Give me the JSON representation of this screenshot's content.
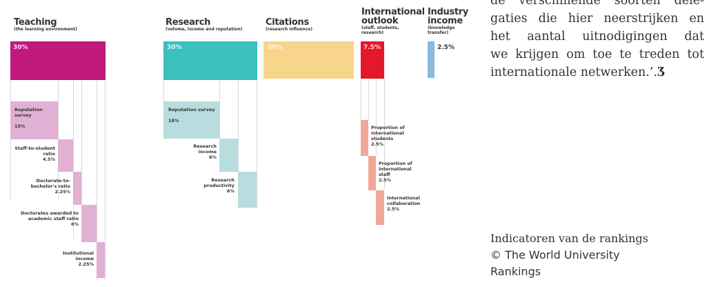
{
  "colors": {
    "teaching": "#c0187c",
    "teaching_light": "#e2afd5",
    "research": "#3dbfbe",
    "research_light": "#b9dcde",
    "citations": "#f7d58b",
    "international": "#e3182c",
    "international_light": "#f0a797",
    "industry": "#89b9de"
  },
  "figure": {
    "teaching": {
      "title": "Teaching",
      "subtitle": "(the learning environment)",
      "pct": "30%",
      "subs": [
        {
          "label": "Reputation survey",
          "pct": "15%"
        },
        {
          "label": "Staff-to-student ratio",
          "pct": "4.5%"
        },
        {
          "label": "Doctorate-to-bachelor's ratio",
          "pct": "2.25%"
        },
        {
          "label": "Doctorates awarded to academic staff ratio",
          "pct": "6%"
        },
        {
          "label": "Institutional income",
          "pct": "2.25%"
        }
      ]
    },
    "research": {
      "title": "Research",
      "subtitle": "(volume, income and reputation)",
      "pct": "30%",
      "subs": [
        {
          "label": "Reputation survey",
          "pct": "18%"
        },
        {
          "label": "Research income",
          "pct": "6%"
        },
        {
          "label": "Research productivity",
          "pct": "6%"
        }
      ]
    },
    "citations": {
      "title": "Citations",
      "subtitle": "(research influence)",
      "pct": "30%"
    },
    "international": {
      "title_1": "International",
      "title_2": "outlook",
      "subtitle_1": "(staff, students,",
      "subtitle_2": "research)",
      "pct": "7.5%",
      "subs": [
        {
          "label": "Proportion of international students",
          "pct": "2.5%"
        },
        {
          "label": "Proportion of international staff",
          "pct": "2.5%"
        },
        {
          "label": "International collaboration",
          "pct": "2.5%"
        }
      ]
    },
    "industry": {
      "title_1": "Industry",
      "title_2": "income",
      "subtitle_1": "(knowledge",
      "subtitle_2": "transfer)",
      "pct": "2.5%"
    }
  },
  "prose": {
    "line0": "de verschillende soorten dele-",
    "line1": "gaties die hier neerstrijken en",
    "line2": "het aantal uitnodigingen dat",
    "line3": "we krijgen om toe te treden tot",
    "line4": "internationale netwerken.’.",
    "end_mark": "Ʒ"
  },
  "caption": {
    "line1": "Indicatoren van de rankings",
    "line2": "© The World University",
    "line3": "Rankings"
  }
}
